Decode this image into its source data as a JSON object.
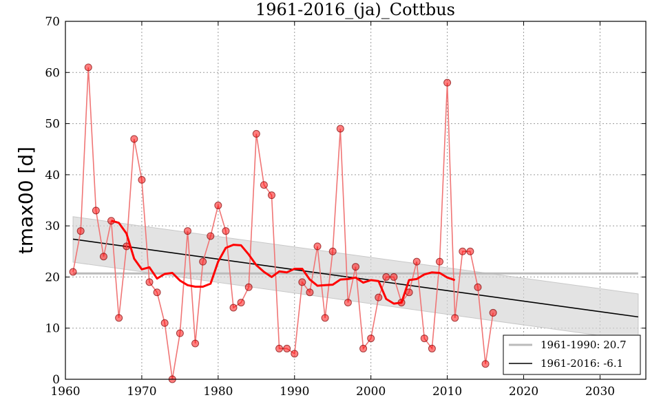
{
  "chart_data": {
    "type": "line",
    "title": "1961-2016_(ja)_Cottbus",
    "xlabel": "",
    "ylabel": "tmax00 [d]",
    "xlim": [
      1960,
      2036
    ],
    "ylim": [
      0,
      70
    ],
    "x_ticks": [
      1960,
      1970,
      1980,
      1990,
      2000,
      2010,
      2020,
      2030
    ],
    "y_ticks": [
      0,
      10,
      20,
      30,
      40,
      50,
      60,
      70
    ],
    "grid": true,
    "legend_position": "bottom-right",
    "series": [
      {
        "kind": "observed",
        "color": "#ff0000",
        "x": [
          1961,
          1962,
          1963,
          1964,
          1965,
          1966,
          1967,
          1968,
          1969,
          1970,
          1971,
          1972,
          1973,
          1974,
          1975,
          1976,
          1977,
          1978,
          1979,
          1980,
          1981,
          1982,
          1983,
          1984,
          1985,
          1986,
          1987,
          1988,
          1989,
          1990,
          1991,
          1992,
          1993,
          1994,
          1995,
          1996,
          1997,
          1998,
          1999,
          2000,
          2001,
          2002,
          2003,
          2004,
          2005,
          2006,
          2007,
          2008,
          2009,
          2010,
          2011,
          2012,
          2013,
          2014,
          2015,
          2016
        ],
        "y": [
          21,
          29,
          61,
          33,
          24,
          31,
          12,
          26,
          47,
          39,
          19,
          17,
          11,
          0,
          9,
          29,
          7,
          23,
          28,
          34,
          29,
          14,
          15,
          18,
          48,
          38,
          36,
          6,
          6,
          5,
          19,
          17,
          26,
          12,
          25,
          49,
          15,
          22,
          6,
          8,
          16,
          20,
          20,
          15,
          17,
          23,
          8,
          6,
          23,
          58,
          12,
          25,
          25,
          18,
          3,
          13
        ]
      },
      {
        "kind": "moving-average",
        "color": "#ff0000",
        "x": [
          1966,
          1967,
          1968,
          1969,
          1970,
          1971,
          1972,
          1973,
          1974,
          1975,
          1976,
          1977,
          1978,
          1979,
          1980,
          1981,
          1982,
          1983,
          1984,
          1985,
          1986,
          1987,
          1988,
          1989,
          1990,
          1991,
          1992,
          1993,
          1994,
          1995,
          1996,
          1997,
          1998,
          1999,
          2000,
          2001,
          2002,
          2003,
          2004,
          2005,
          2006,
          2007,
          2008,
          2009,
          2010,
          2011
        ],
        "y": [
          31,
          30.6,
          28.5,
          23.6,
          21.5,
          21.9,
          19.7,
          20.6,
          20.8,
          19.3,
          18.4,
          18.1,
          18.1,
          18.7,
          23.0,
          25.7,
          26.3,
          26.2,
          24.4,
          22.3,
          21.0,
          20.0,
          21.1,
          20.9,
          21.6,
          21.6,
          19.5,
          18.3,
          18.4,
          18.5,
          19.5,
          19.6,
          19.9,
          18.9,
          19.4,
          19.2,
          15.7,
          14.8,
          15.0,
          19.4,
          19.6,
          20.5,
          20.9,
          20.8,
          19.9,
          19.4
        ]
      }
    ],
    "reference_line": {
      "label": "1961-1990: 20.7",
      "value": 20.7,
      "color": "#bbbbbb",
      "x_range": [
        1961,
        2035
      ]
    },
    "trend_line": {
      "label": "1961-2016: -6.1",
      "color": "#000000",
      "x": [
        1961,
        2035
      ],
      "y": [
        27.4,
        12.2
      ],
      "band_upper": [
        31.8,
        16.7
      ],
      "band_lower": [
        22.9,
        7.5
      ]
    },
    "legend": [
      {
        "label": "1961-1990: 20.7",
        "color": "#bbbbbb"
      },
      {
        "label": "1961-2016: -6.1",
        "color": "#000000"
      }
    ]
  }
}
